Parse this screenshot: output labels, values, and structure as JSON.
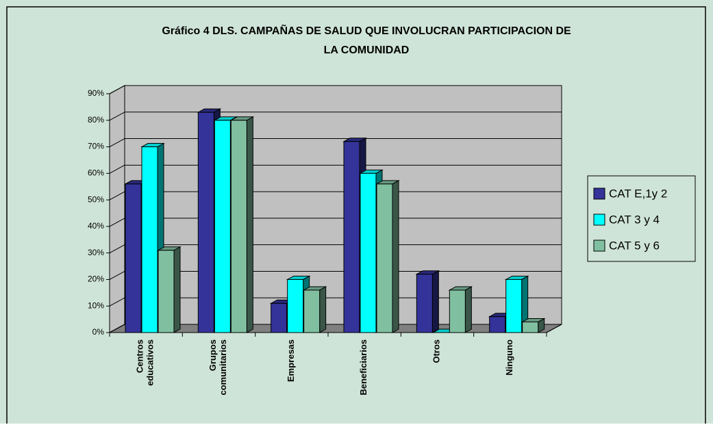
{
  "chart_data": {
    "type": "bar3d",
    "title": [
      "Gráfico 4  DLS. CAMPAÑAS DE SALUD QUE INVOLUCRAN PARTICIPACION DE",
      "LA COMUNIDAD"
    ],
    "categories": [
      "Centros educativos",
      "Grupos comunitarios",
      "Empresas",
      "Beneficiarios",
      "Otros",
      "Ninguno"
    ],
    "series": [
      {
        "name": "CAT E,1y 2",
        "color": "#333399",
        "values": [
          56,
          83,
          11,
          72,
          22,
          6
        ]
      },
      {
        "name": "CAT 3 y 4",
        "color": "#00ffff",
        "values": [
          70,
          80,
          20,
          60,
          0,
          20
        ]
      },
      {
        "name": "CAT 5 y 6",
        "color": "#80c0a0",
        "values": [
          31,
          80,
          16,
          56,
          16,
          4
        ]
      }
    ],
    "ylim": [
      0,
      90
    ],
    "yticks": [
      {
        "value": 0,
        "label": "0%"
      },
      {
        "value": 10,
        "label": "10%"
      },
      {
        "value": 20,
        "label": "20%"
      },
      {
        "value": 30,
        "label": "30%"
      },
      {
        "value": 40,
        "label": "40%"
      },
      {
        "value": 50,
        "label": "50%"
      },
      {
        "value": 60,
        "label": "60%"
      },
      {
        "value": 70,
        "label": "70%"
      },
      {
        "value": 80,
        "label": "80%"
      },
      {
        "value": 90,
        "label": "90%"
      }
    ],
    "grid": true,
    "legend": "right"
  }
}
